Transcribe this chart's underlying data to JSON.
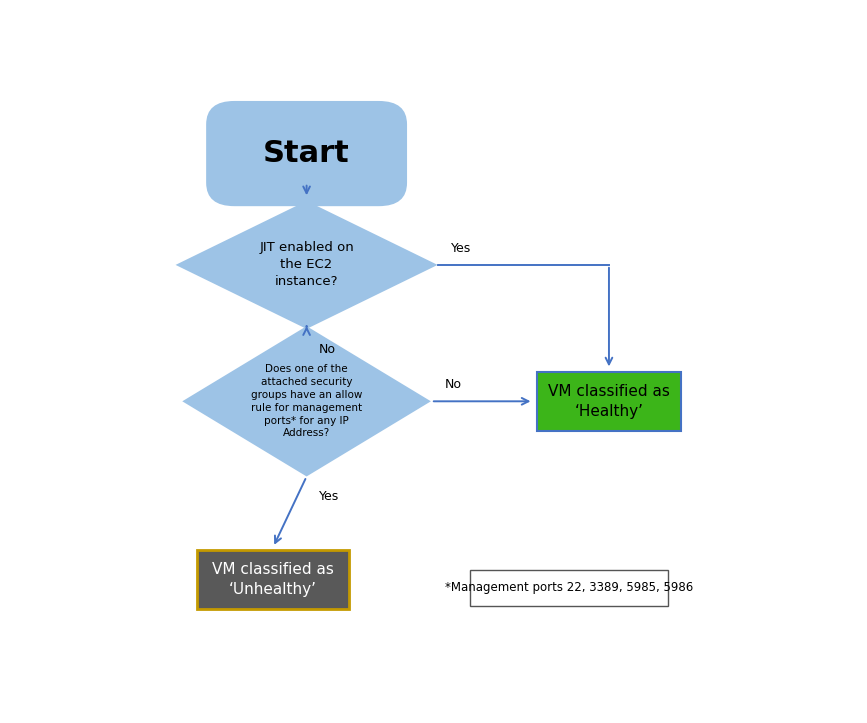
{
  "bg_color": "#ffffff",
  "arrow_color": "#4472C4",
  "diamond_color": "#9DC3E6",
  "start_color": "#9DC3E6",
  "healthy_color": "#3CB519",
  "unhealthy_color": "#595959",
  "unhealthy_border": "#C49A00",
  "healthy_border": "#3CB519",
  "start_text": "Start",
  "diamond1_text": "JIT enabled on\nthe EC2\ninstance?",
  "diamond2_text": "Does one of the\nattached security\ngroups have an allow\nrule for management\nports* for any IP\nAddress?",
  "healthy_text": "VM classified as\n‘Healthy’",
  "unhealthy_text": "VM classified as\n‘Unhealthy’",
  "note_text": "*Management ports 22, 3389, 5985, 5986",
  "yes1_label": "Yes",
  "no1_label": "No",
  "no2_label": "No",
  "yes2_label": "Yes",
  "figw": 8.67,
  "figh": 7.23,
  "dpi": 100
}
